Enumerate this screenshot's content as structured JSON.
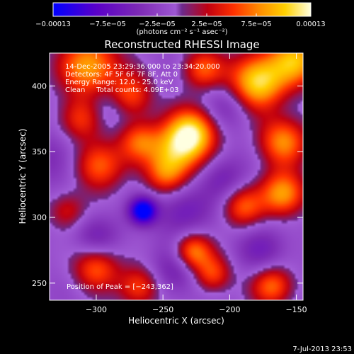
{
  "chart_data": {
    "type": "heatmap",
    "title": "Reconstructed RHESSI Image",
    "xlabel": "Heliocentric X (arcsec)",
    "ylabel": "Heliocentric Y (arcsec)",
    "xlim": [
      -335,
      -145
    ],
    "ylim": [
      237,
      425
    ],
    "xticks": [
      -300,
      -250,
      -200,
      -150
    ],
    "xtick_labels": [
      "−300",
      "−250",
      "−200",
      "−150"
    ],
    "yticks": [
      250,
      300,
      350,
      400
    ],
    "ytick_labels": [
      "250",
      "300",
      "350",
      "400"
    ],
    "colorbar": {
      "range": [
        -0.00013,
        0.00013
      ],
      "ticks": [
        -0.00013,
        -7.5e-05,
        -2.5e-05,
        2.5e-05,
        7.5e-05,
        0.00013
      ],
      "tick_labels": [
        "−0.00013",
        "−7.5e−05",
        "−2.5e−05",
        "2.5e−05",
        "7.5e−05",
        "0.00013"
      ],
      "unit_label": "(photons cm⁻² s⁻¹ asec⁻²)"
    },
    "colors": {
      "cmap_neg": [
        "#0000ff",
        "#5a00c8",
        "#7d2ab4",
        "#a45fd8"
      ],
      "cmap_pos": [
        "#6c2a8c",
        "#c00010",
        "#ff3000",
        "#ff8c00",
        "#ffd000",
        "#ffffe0"
      ],
      "background": "#000000",
      "text": "#ffffff"
    },
    "sources": [
      {
        "x": -305,
        "y": 415,
        "amp": 0.8,
        "s": 16
      },
      {
        "x": -275,
        "y": 392,
        "amp": 0.6,
        "s": 12
      },
      {
        "x": -312,
        "y": 375,
        "amp": 0.5,
        "s": 12
      },
      {
        "x": -268,
        "y": 358,
        "amp": 0.55,
        "s": 11
      },
      {
        "x": -298,
        "y": 340,
        "amp": 0.65,
        "s": 13
      },
      {
        "x": -240,
        "y": 350,
        "amp": 0.7,
        "s": 14
      },
      {
        "x": -228,
        "y": 365,
        "amp": 0.9,
        "s": 13
      },
      {
        "x": -248,
        "y": 332,
        "amp": 0.5,
        "s": 11
      },
      {
        "x": -180,
        "y": 403,
        "amp": 1.0,
        "s": 15
      },
      {
        "x": -150,
        "y": 420,
        "amp": 0.8,
        "s": 14
      },
      {
        "x": -220,
        "y": 413,
        "amp": 0.55,
        "s": 11
      },
      {
        "x": -160,
        "y": 358,
        "amp": 0.7,
        "s": 13
      },
      {
        "x": -160,
        "y": 318,
        "amp": 0.8,
        "s": 12
      },
      {
        "x": -190,
        "y": 308,
        "amp": 0.55,
        "s": 11
      },
      {
        "x": -322,
        "y": 305,
        "amp": 0.4,
        "s": 10
      },
      {
        "x": -300,
        "y": 262,
        "amp": 0.6,
        "s": 12
      },
      {
        "x": -268,
        "y": 247,
        "amp": 0.55,
        "s": 11
      },
      {
        "x": -228,
        "y": 274,
        "amp": 0.75,
        "s": 10
      },
      {
        "x": -213,
        "y": 257,
        "amp": 0.55,
        "s": 10
      },
      {
        "x": -168,
        "y": 248,
        "amp": 0.65,
        "s": 11
      },
      {
        "x": -265,
        "y": 305,
        "amp": -1.0,
        "s": 7
      },
      {
        "x": -235,
        "y": 305,
        "amp": -0.35,
        "s": 14
      },
      {
        "x": -330,
        "y": 345,
        "amp": -0.25,
        "s": 14
      },
      {
        "x": -290,
        "y": 385,
        "amp": -0.3,
        "s": 12
      },
      {
        "x": -200,
        "y": 385,
        "amp": -0.3,
        "s": 13
      },
      {
        "x": -205,
        "y": 330,
        "amp": -0.3,
        "s": 12
      },
      {
        "x": -240,
        "y": 260,
        "amp": -0.35,
        "s": 13
      },
      {
        "x": -300,
        "y": 285,
        "amp": -0.3,
        "s": 12
      },
      {
        "x": -175,
        "y": 275,
        "amp": -0.3,
        "s": 13
      }
    ]
  },
  "info": {
    "time_range": "14-Dec-2005 23:29:36.000 to 23:34:20.000",
    "detectors": "Detectors: 4F 5F 6F 7F 8F, Att 0",
    "energy": "Energy Range: 12.0 - 25.0 keV",
    "counts": "Clean     Total counts: 4.09E+03",
    "peak": "Position of Peak = [−243,362]"
  },
  "timestamp": "7-Jul-2013 23:53"
}
